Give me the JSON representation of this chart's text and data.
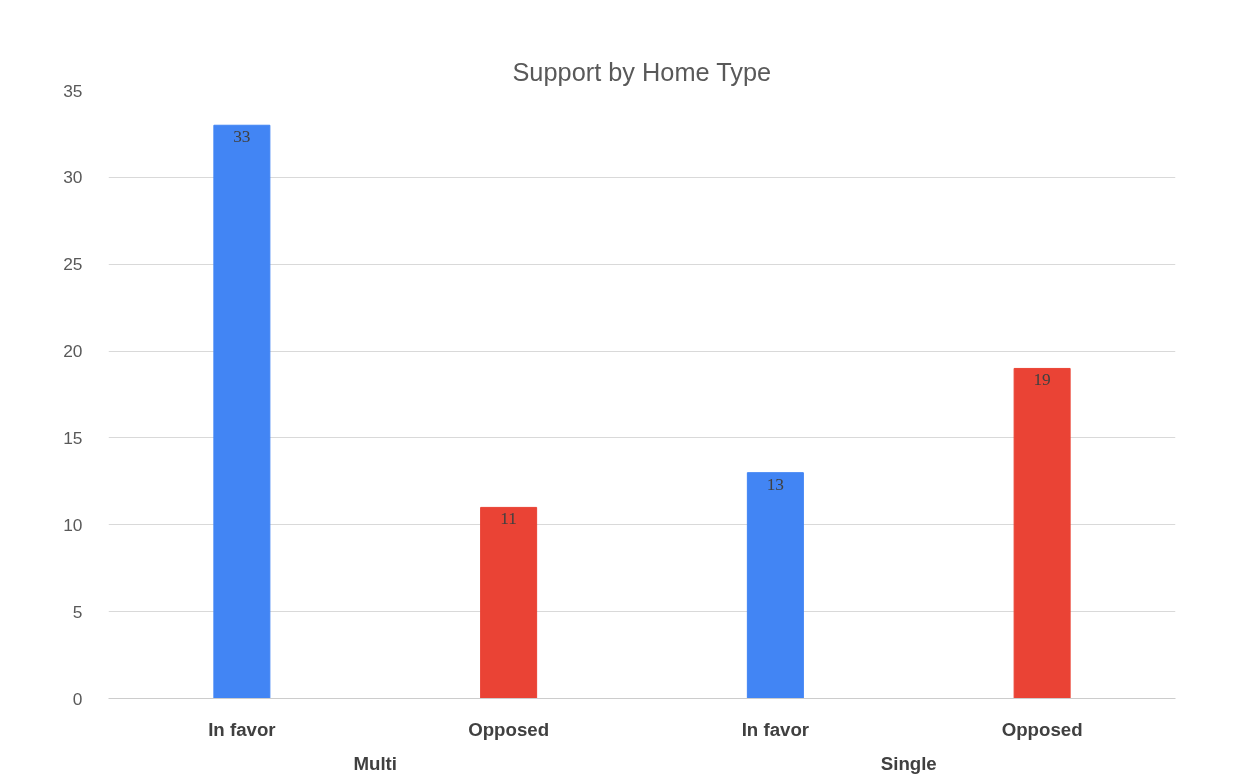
{
  "chart_data": {
    "type": "bar",
    "title": "Support by Home Type",
    "categories": [
      "In favor",
      "Opposed",
      "In favor",
      "Opposed"
    ],
    "values": [
      33,
      11,
      13,
      19
    ],
    "colors": [
      "#4285f4",
      "#ea4335",
      "#4285f4",
      "#ea4335"
    ],
    "ylim": [
      0,
      35
    ],
    "yticks": [
      0,
      5,
      10,
      15,
      20,
      25,
      30,
      35
    ],
    "grid": "y",
    "data_labels": true,
    "annotations": [
      "Multi",
      "Single"
    ]
  }
}
